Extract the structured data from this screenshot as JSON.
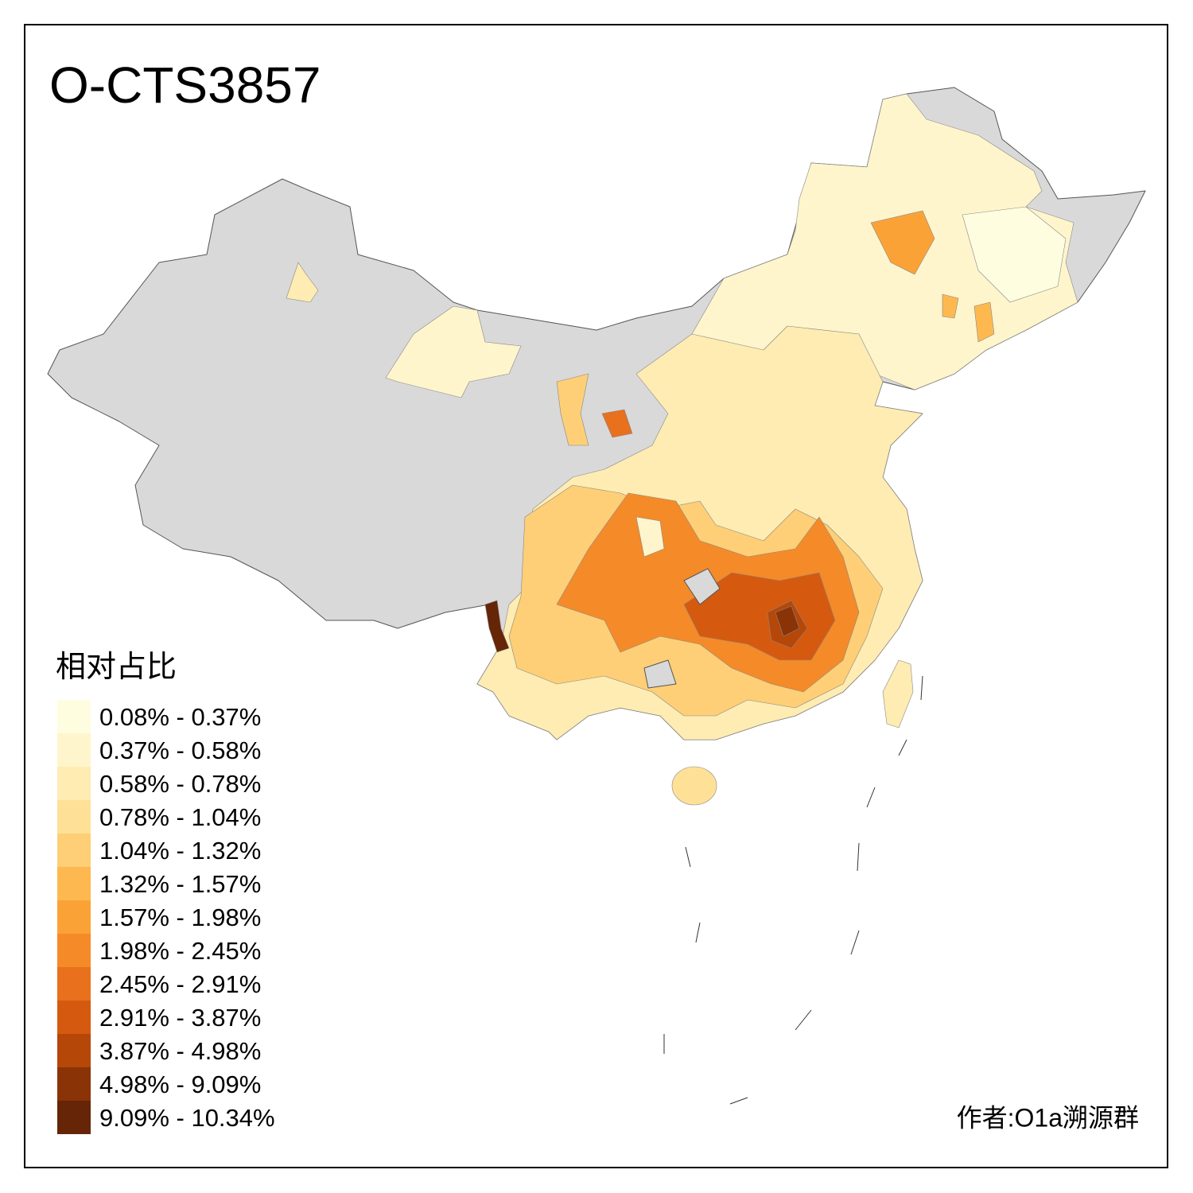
{
  "title": "O-CTS3857",
  "legend": {
    "title": "相对占比",
    "items": [
      {
        "label": "0.08% - 0.37%",
        "color": "#fffde0"
      },
      {
        "label": "0.37% - 0.58%",
        "color": "#fff5cc"
      },
      {
        "label": "0.58% - 0.78%",
        "color": "#feecb2"
      },
      {
        "label": "0.78% - 1.04%",
        "color": "#fee197"
      },
      {
        "label": "1.04% - 1.32%",
        "color": "#fecf76"
      },
      {
        "label": "1.32% - 1.57%",
        "color": "#fdb94f"
      },
      {
        "label": "1.57% - 1.98%",
        "color": "#fba237"
      },
      {
        "label": "1.98% - 2.45%",
        "color": "#f58a28"
      },
      {
        "label": "2.45% - 2.91%",
        "color": "#e9701c"
      },
      {
        "label": "2.91% - 3.87%",
        "color": "#d55a0f"
      },
      {
        "label": "3.87% - 4.98%",
        "color": "#b54709"
      },
      {
        "label": "4.98% - 9.09%",
        "color": "#8a3306"
      },
      {
        "label": "9.09% - 10.34%",
        "color": "#652506"
      }
    ]
  },
  "author": "作者:O1a溯源群"
}
